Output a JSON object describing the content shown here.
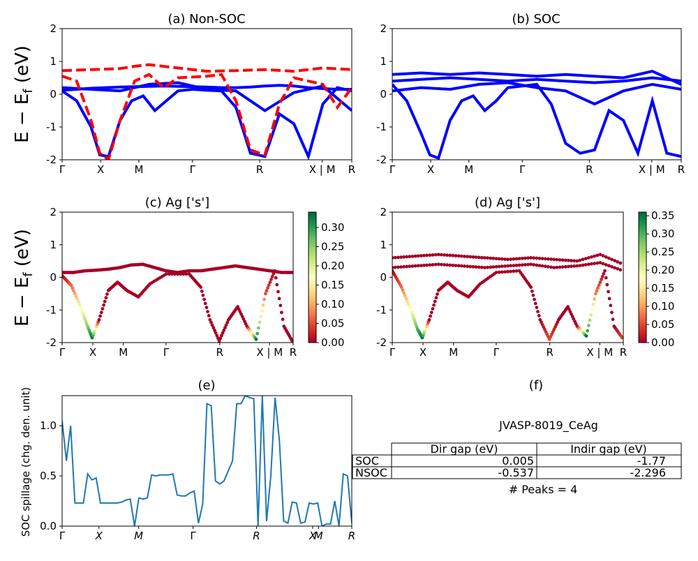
{
  "chart_data": [
    {
      "id": "a",
      "type": "line",
      "title": "(a) Non-SOC",
      "ylabel": "$E-E_f$ (eV)",
      "ylim": [
        -2,
        2
      ],
      "yticks": [
        "2",
        "1",
        "0",
        "-1",
        "-2"
      ],
      "kpath_labels": [
        "Γ",
        "X",
        "M",
        "Γ",
        "R",
        "X | M",
        "R"
      ],
      "colors": {
        "spin_up": "#0000ff",
        "spin_down": "#ff0000"
      },
      "series": [
        {
          "style": "solid",
          "color": "#0000ff",
          "x": [
            0,
            0.05,
            0.1,
            0.15,
            0.2,
            0.25,
            0.3,
            0.35,
            0.4,
            0.45,
            0.5,
            0.55,
            0.6,
            0.65,
            0.7,
            0.75,
            0.8,
            0.85,
            0.9,
            0.95,
            1
          ],
          "y": [
            0.12,
            0.15,
            0.18,
            0.2,
            0.22,
            0.23,
            0.24,
            0.25,
            0.24,
            0.23,
            0.22,
            0.2,
            0.2,
            0.22,
            0.25,
            0.27,
            0.25,
            0.2,
            0.17,
            0.15,
            0.15
          ]
        },
        {
          "style": "solid",
          "color": "#0000ff",
          "x": [
            0,
            0.05,
            0.1,
            0.13,
            0.16,
            0.2,
            0.24,
            0.28,
            0.32,
            0.36,
            0.4,
            0.45,
            0.5,
            0.55,
            0.6,
            0.65,
            0.7,
            0.75,
            0.8,
            0.85,
            0.9,
            0.95,
            1
          ],
          "y": [
            0.1,
            -0.2,
            -1.0,
            -1.85,
            -1.9,
            -0.8,
            -0.2,
            -0.05,
            -0.5,
            -0.2,
            0.1,
            0.15,
            0.12,
            0.1,
            -0.4,
            -1.8,
            -1.9,
            -0.6,
            -0.9,
            -1.9,
            -0.3,
            0.2,
            0.1
          ]
        },
        {
          "style": "solid",
          "color": "#0000ff",
          "x": [
            0,
            0.1,
            0.2,
            0.3,
            0.4,
            0.5,
            0.6,
            0.7,
            0.8,
            0.9,
            1
          ],
          "y": [
            0.2,
            0.15,
            0.1,
            0.3,
            0.35,
            0.15,
            0.1,
            -0.5,
            0.05,
            0.25,
            -0.5
          ]
        },
        {
          "style": "dashed",
          "color": "#ff0000",
          "x": [
            0,
            0.1,
            0.2,
            0.25,
            0.3,
            0.4,
            0.5,
            0.6,
            0.7,
            0.8,
            0.9,
            1
          ],
          "y": [
            0.72,
            0.75,
            0.78,
            0.85,
            0.9,
            0.8,
            0.7,
            0.72,
            0.75,
            0.7,
            0.8,
            0.75
          ]
        },
        {
          "style": "dashed",
          "color": "#ff0000",
          "x": [
            0,
            0.05,
            0.1,
            0.13,
            0.16,
            0.2,
            0.25,
            0.3,
            0.35,
            0.4,
            0.5,
            0.55,
            0.6,
            0.65,
            0.7,
            0.75,
            0.8,
            0.85,
            0.9,
            0.95,
            1
          ],
          "y": [
            0.55,
            0.4,
            -0.8,
            -1.8,
            -2.0,
            -0.8,
            0.4,
            0.6,
            0.2,
            0.5,
            0.55,
            0.6,
            -0.2,
            -1.7,
            -1.85,
            -0.3,
            0.5,
            0.4,
            0.3,
            -0.4,
            0.2
          ]
        }
      ]
    },
    {
      "id": "b",
      "type": "line",
      "title": "(b) SOC",
      "ylim": [
        -2,
        2
      ],
      "yticks": [
        "2",
        "1",
        "0",
        "-1",
        "-2"
      ],
      "kpath_labels": [
        "Γ",
        "X",
        "M",
        "Γ",
        "R",
        "X | M",
        "R"
      ],
      "colors": {
        "bands": "#0000ff"
      },
      "series": [
        {
          "x": [
            0,
            0.1,
            0.2,
            0.3,
            0.4,
            0.5,
            0.6,
            0.7,
            0.8,
            0.9,
            1
          ],
          "y": [
            0.6,
            0.65,
            0.6,
            0.65,
            0.6,
            0.55,
            0.6,
            0.55,
            0.5,
            0.7,
            0.3
          ]
        },
        {
          "x": [
            0,
            0.05,
            0.1,
            0.13,
            0.16,
            0.2,
            0.24,
            0.28,
            0.32,
            0.36,
            0.4,
            0.5,
            0.55,
            0.6,
            0.65,
            0.7,
            0.75,
            0.8,
            0.85,
            0.9,
            0.95,
            1
          ],
          "y": [
            0.3,
            -0.2,
            -1.2,
            -1.85,
            -1.95,
            -0.8,
            -0.2,
            -0.05,
            -0.5,
            -0.2,
            0.2,
            0.3,
            -0.3,
            -1.5,
            -1.8,
            -1.7,
            -0.5,
            -0.8,
            -1.8,
            -0.2,
            -1.8,
            -1.9
          ]
        },
        {
          "x": [
            0,
            0.1,
            0.2,
            0.3,
            0.4,
            0.5,
            0.6,
            0.7,
            0.8,
            0.9,
            1
          ],
          "y": [
            0.1,
            0.2,
            0.15,
            0.3,
            0.35,
            0.2,
            0.1,
            -0.3,
            0.1,
            0.3,
            0.15
          ]
        },
        {
          "x": [
            0,
            0.1,
            0.2,
            0.3,
            0.4,
            0.5,
            0.6,
            0.7,
            0.8,
            0.9,
            1
          ],
          "y": [
            0.4,
            0.45,
            0.5,
            0.45,
            0.4,
            0.45,
            0.4,
            0.35,
            0.4,
            0.5,
            0.4
          ]
        }
      ]
    },
    {
      "id": "c",
      "type": "scatter",
      "title": "(c)  Ag ['s']",
      "ylabel": "$E-E_f$ (eV)",
      "ylim": [
        -2,
        2
      ],
      "yticks": [
        "2",
        "1",
        "0",
        "-1",
        "-2"
      ],
      "kpath_labels": [
        "Γ",
        "X",
        "M",
        "Γ",
        "R",
        "X | M",
        "R"
      ],
      "colorbar": {
        "cmap": "RdYlGn",
        "min": 0.0,
        "max": 0.34,
        "ticks": [
          "0.30",
          "0.25",
          "0.20",
          "0.15",
          "0.10",
          "0.05",
          "0.00"
        ]
      },
      "series": [
        {
          "x": [
            0,
            0.05,
            0.1,
            0.15,
            0.2,
            0.25,
            0.3,
            0.35,
            0.4,
            0.45,
            0.5,
            0.55,
            0.6,
            0.65,
            0.7,
            0.75,
            0.8,
            0.85,
            0.9,
            0.95,
            1
          ],
          "y": [
            0.15,
            0.15,
            0.2,
            0.22,
            0.25,
            0.3,
            0.38,
            0.4,
            0.3,
            0.2,
            0.15,
            0.2,
            0.2,
            0.25,
            0.3,
            0.35,
            0.3,
            0.25,
            0.2,
            0.15,
            0.15
          ],
          "c": 0.0
        },
        {
          "x": [
            0,
            0.04,
            0.08,
            0.11,
            0.13,
            0.16,
            0.2,
            0.24,
            0.28,
            0.33,
            0.38,
            0.45,
            0.55,
            0.6,
            0.64,
            0.68,
            0.72,
            0.76,
            0.8,
            0.84,
            0.88,
            0.92,
            0.96,
            1
          ],
          "y": [
            0.05,
            -0.25,
            -0.9,
            -1.5,
            -1.85,
            -1.3,
            -0.4,
            -0.15,
            -0.4,
            -0.6,
            -0.2,
            0.1,
            0.1,
            -0.3,
            -1.3,
            -1.95,
            -1.3,
            -0.9,
            -1.5,
            -1.9,
            -0.5,
            0.2,
            -1.5,
            -2.0
          ],
          "c": [
            0.0,
            0.06,
            0.16,
            0.25,
            0.33,
            0.0,
            0.0,
            0.0,
            0.0,
            0.0,
            0.0,
            0.0,
            0.0,
            0.0,
            0.0,
            0.0,
            0.0,
            0.0,
            0.0,
            0.33,
            0.05,
            0.0,
            0.0,
            0.0
          ]
        }
      ]
    },
    {
      "id": "d",
      "type": "scatter",
      "title": "(d) Ag ['s']",
      "ylim": [
        -2,
        2
      ],
      "yticks": [
        "2",
        "1",
        "0",
        "-1",
        "-2"
      ],
      "kpath_labels": [
        "Γ",
        "X",
        "M",
        "Γ",
        "R",
        "X | M",
        "R"
      ],
      "colorbar": {
        "cmap": "RdYlGn",
        "min": 0.0,
        "max": 0.36,
        "ticks": [
          "0.35",
          "0.30",
          "0.25",
          "0.20",
          "0.15",
          "0.10",
          "0.05",
          "0.00"
        ]
      },
      "series": [
        {
          "x": [
            0,
            0.1,
            0.2,
            0.3,
            0.4,
            0.5,
            0.6,
            0.7,
            0.8,
            0.9,
            1
          ],
          "y": [
            0.6,
            0.65,
            0.7,
            0.65,
            0.6,
            0.55,
            0.6,
            0.55,
            0.5,
            0.7,
            0.4
          ],
          "c": 0.0
        },
        {
          "x": [
            0,
            0.1,
            0.2,
            0.3,
            0.4,
            0.5,
            0.6,
            0.7,
            0.8,
            0.9,
            1
          ],
          "y": [
            0.3,
            0.35,
            0.4,
            0.35,
            0.3,
            0.35,
            0.4,
            0.3,
            0.35,
            0.45,
            0.2
          ],
          "c": 0.0
        },
        {
          "x": [
            0,
            0.04,
            0.08,
            0.11,
            0.13,
            0.16,
            0.2,
            0.24,
            0.28,
            0.33,
            0.38,
            0.45,
            0.55,
            0.6,
            0.64,
            0.68,
            0.72,
            0.76,
            0.8,
            0.84,
            0.88,
            0.92,
            0.96,
            1
          ],
          "y": [
            0.2,
            -0.3,
            -1.0,
            -1.6,
            -1.85,
            -1.3,
            -0.4,
            -0.15,
            -0.4,
            -0.6,
            -0.2,
            0.15,
            0.2,
            -0.3,
            -1.3,
            -1.9,
            -1.3,
            -0.9,
            -1.5,
            -1.8,
            -0.5,
            0.2,
            -1.5,
            -1.9
          ],
          "c": [
            0.0,
            0.07,
            0.18,
            0.3,
            0.35,
            0.0,
            0.0,
            0.0,
            0.0,
            0.0,
            0.0,
            0.0,
            0.0,
            0.0,
            0.0,
            0.05,
            0.0,
            0.0,
            0.0,
            0.35,
            0.08,
            0.0,
            0.0,
            0.05
          ]
        }
      ]
    },
    {
      "id": "e",
      "type": "line",
      "title": "(e)",
      "ylabel": "SOC spillage (chg. den. unit)",
      "ylim": [
        0,
        1.3
      ],
      "yticks": [
        "0.0",
        "0.5",
        "1.0"
      ],
      "kpath_labels": [
        "Γ",
        "X",
        "M",
        "Γ",
        "R",
        "X",
        "M",
        "R"
      ],
      "color": "#1f77b4",
      "series": [
        {
          "x": [
            0,
            0.005,
            0.015,
            0.025,
            0.03,
            0.04,
            0.045,
            0.055,
            0.065,
            0.07,
            0.08,
            0.09,
            0.1,
            0.105,
            0.115,
            0.12,
            0.15,
            0.18,
            0.2,
            0.2,
            0.2,
            0.2,
            0.19,
            0.195,
            0.2,
            0.2,
            0.2,
            0.2,
            0.205,
            0.21,
            0.215,
            0.22,
            0.225,
            0.23,
            0.235,
            0.24,
            0.25,
            0.26,
            0.27,
            0.28,
            0.29,
            0.3,
            0.31,
            0.32,
            0.33,
            0.34,
            0.345,
            0.35,
            0.355,
            0.36,
            0.365,
            0.37,
            0.38,
            0.39,
            0.4,
            0.41,
            0.42,
            0.425,
            0.43,
            0.44,
            0.45,
            0.46,
            0.47,
            0.475,
            0.48,
            0.485,
            0.49,
            0.495,
            0.5
          ],
          "y": [
            1.05,
            0.65,
            1.0,
            0.23,
            0.23,
            0.23,
            0.52,
            0.46,
            0.48,
            0.23,
            0.23,
            0.23,
            0.23,
            0.23,
            0.24,
            0.26,
            0.27,
            0.0,
            0.28,
            0.27,
            0.28,
            0.51,
            0.5,
            0.51,
            0.51,
            0.51,
            0.52,
            0.31,
            0.3,
            0.3,
            0.33,
            0.35,
            0.03,
            0.22,
            1.22,
            1.2,
            0.45,
            0.42,
            0.45,
            0.55,
            0.65,
            1.22,
            1.22,
            1.3,
            1.28,
            1.27,
            0.0,
            1.3,
            0.05,
            0.5,
            1.28,
            0.85,
            0.05,
            0.03,
            0.24,
            0.23,
            0.03,
            0.04,
            0.23,
            0.22,
            0.23,
            0.0,
            0.02,
            0.02,
            0.25,
            0.0,
            0.52,
            0.5,
            0.03
          ]
        }
      ]
    }
  ],
  "panel_f": {
    "title": "(f)",
    "material": "JVASP-8019_CeAg",
    "table": {
      "columns": [
        "Dir gap (eV)",
        "Indir gap (eV)"
      ],
      "rows": [
        {
          "label": "SOC",
          "dir": "0.005",
          "indir": "-1.77"
        },
        {
          "label": "NSOC",
          "dir": "-0.537",
          "indir": "-2.296"
        }
      ]
    },
    "peaks": "# Peaks = 4"
  }
}
